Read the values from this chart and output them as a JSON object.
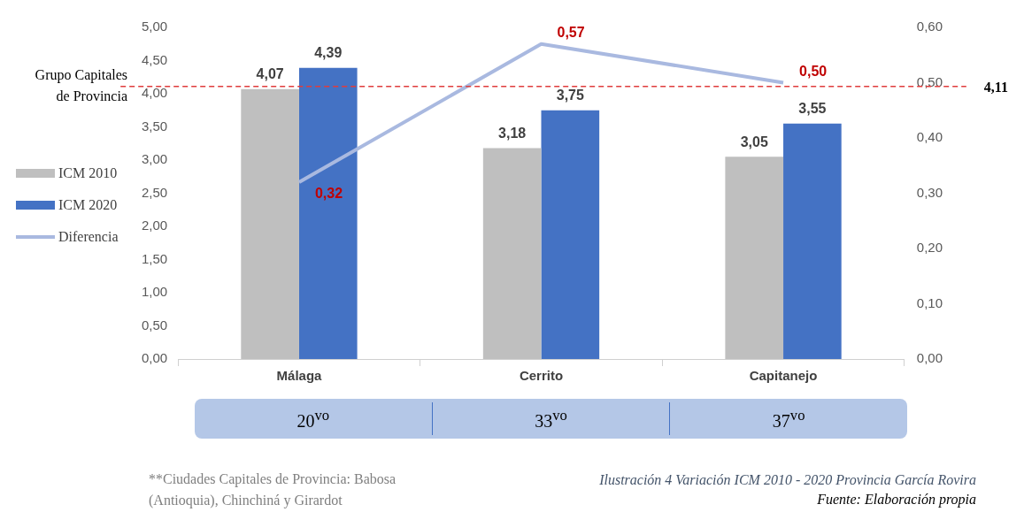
{
  "chart_data": {
    "type": "bar",
    "title": "Ilustración 4 Variación ICM 2010 - 2020 Provincia García Rovira",
    "categories": [
      "Málaga",
      "Cerrito",
      "Capitanejo"
    ],
    "series": [
      {
        "name": "ICM 2010",
        "color": "#bfbfbf",
        "values": [
          4.07,
          3.18,
          3.05
        ],
        "value_labels": [
          "4,07",
          "3,18",
          "3,05"
        ]
      },
      {
        "name": "ICM 2020",
        "color": "#4472c4",
        "values": [
          4.39,
          3.75,
          3.55
        ],
        "value_labels": [
          "4,39",
          "3,75",
          "3,55"
        ]
      },
      {
        "name": "Diferencia",
        "type": "line",
        "axis": "y2",
        "color": "#a9b9e0",
        "values": [
          0.32,
          0.57,
          0.5
        ],
        "value_labels": [
          "0,32",
          "0,57",
          "0,50"
        ]
      }
    ],
    "ylim": [
      0,
      5
    ],
    "yticks": [
      {
        "value": 0,
        "label": "0,00"
      },
      {
        "value": 0.5,
        "label": "0,50"
      },
      {
        "value": 1,
        "label": "1,00"
      },
      {
        "value": 1.5,
        "label": "1,50"
      },
      {
        "value": 2,
        "label": "2,00"
      },
      {
        "value": 2.5,
        "label": "2,50"
      },
      {
        "value": 3,
        "label": "3,00"
      },
      {
        "value": 3.5,
        "label": "3,50"
      },
      {
        "value": 4,
        "label": "4,00"
      },
      {
        "value": 4.5,
        "label": "4,50"
      },
      {
        "value": 5,
        "label": "5,00"
      }
    ],
    "y2lim": [
      0,
      0.6
    ],
    "y2ticks": [
      {
        "value": 0,
        "label": "0,00"
      },
      {
        "value": 0.1,
        "label": "0,10"
      },
      {
        "value": 0.2,
        "label": "0,20"
      },
      {
        "value": 0.3,
        "label": "0,30"
      },
      {
        "value": 0.4,
        "label": "0,40"
      },
      {
        "value": 0.5,
        "label": "0,50"
      },
      {
        "value": 0.6,
        "label": "0,60"
      }
    ],
    "ref_lines": [
      {
        "axis": "y",
        "value": 4.11,
        "label": "Grupo Capitales de Provincia",
        "color": "#e03c3c",
        "line_style": "dashed"
      }
    ],
    "legend": "left",
    "grid": false,
    "marker": "none",
    "annotations": [
      "20$^{vo}$",
      "33$^{vo}$",
      "37$^{vo}$",
      "**Ciudades Capitales de Provincia: Babosa (Antioquia), Chinchiná y Girardot",
      "Fuente: Elaboración propia",
      "4,11"
    ]
  }
}
